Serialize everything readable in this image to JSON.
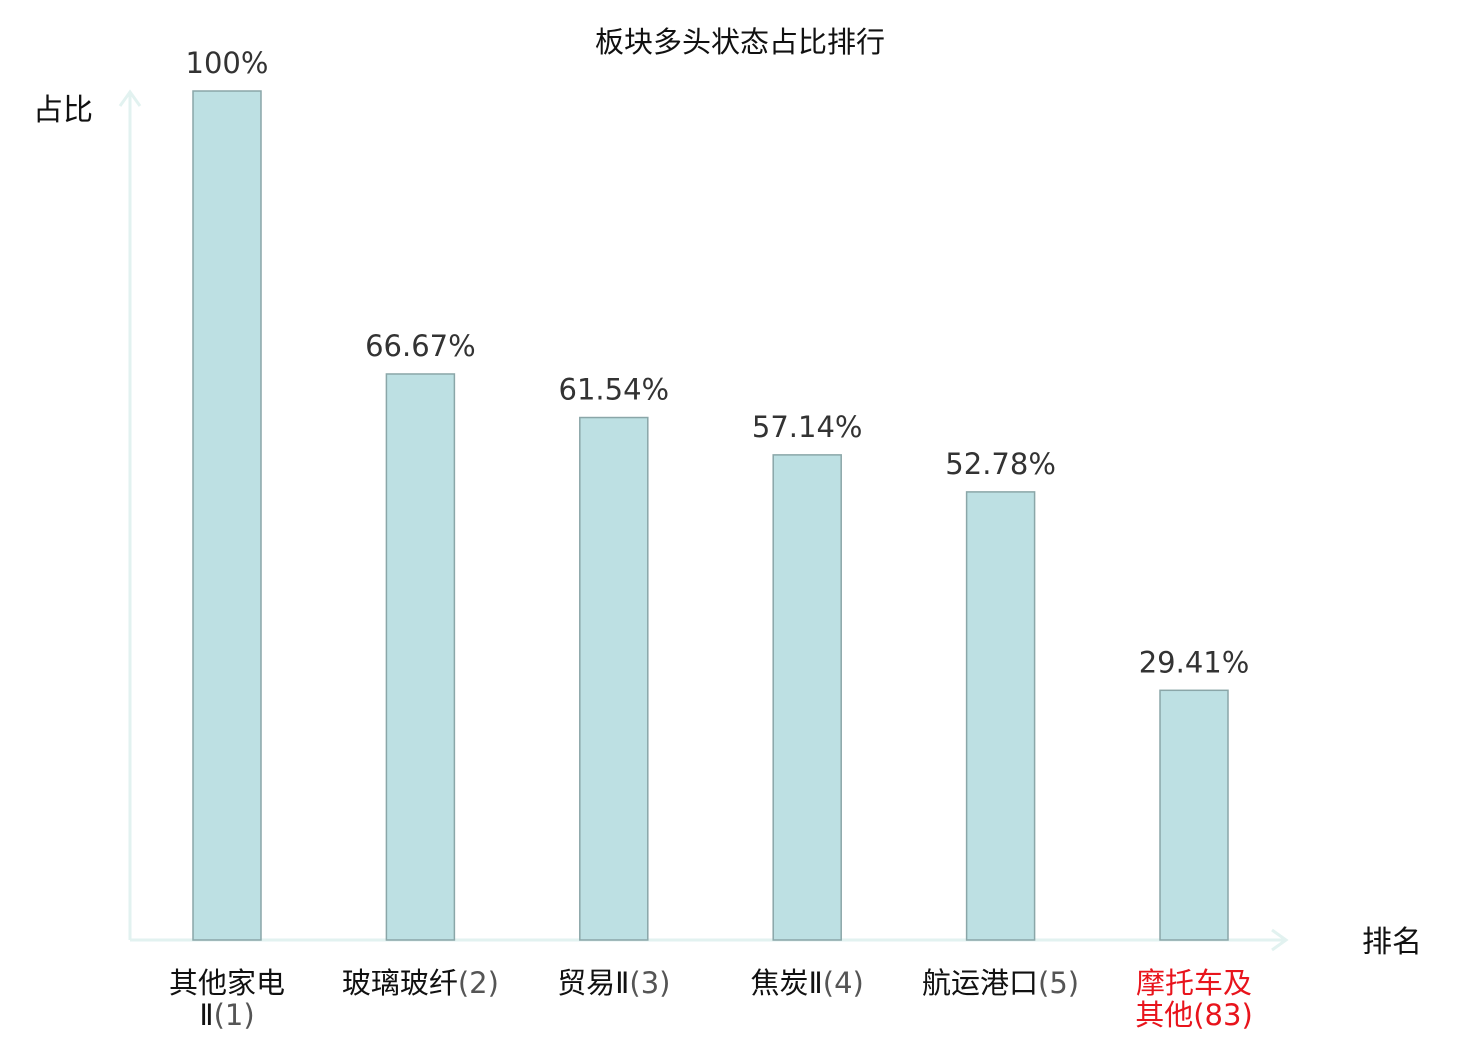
{
  "chart_data": {
    "type": "bar",
    "title": "板块多头状态占比排行",
    "ylabel": "占比",
    "xlabel": "排名",
    "ylim": [
      0,
      100
    ],
    "categories": [
      {
        "name": "其他家电Ⅱ",
        "rank": "(1)",
        "lines": [
          {
            "name": "其他家电",
            "rank": ""
          },
          {
            "name": "Ⅱ",
            "rank": "(1)"
          }
        ],
        "highlight": false
      },
      {
        "name": "玻璃玻纤",
        "rank": "(2)",
        "lines": [
          {
            "name": "玻璃玻纤",
            "rank": "(2)"
          }
        ],
        "highlight": false
      },
      {
        "name": "贸易Ⅱ",
        "rank": "(3)",
        "lines": [
          {
            "name": "贸易Ⅱ",
            "rank": "(3)"
          }
        ],
        "highlight": false
      },
      {
        "name": "焦炭Ⅱ",
        "rank": "(4)",
        "lines": [
          {
            "name": "焦炭Ⅱ",
            "rank": "(4)"
          }
        ],
        "highlight": false
      },
      {
        "name": "航运港口",
        "rank": "(5)",
        "lines": [
          {
            "name": "航运港口",
            "rank": "(5)"
          }
        ],
        "highlight": false
      },
      {
        "name": "摩托车及其他",
        "rank": "(83)",
        "lines": [
          {
            "name": "摩托车及",
            "rank": ""
          },
          {
            "name": "其他",
            "rank": "(83)"
          }
        ],
        "highlight": true
      }
    ],
    "values": [
      100,
      66.67,
      61.54,
      57.14,
      52.78,
      29.41
    ],
    "value_labels": [
      "100%",
      "66.67%",
      "61.54%",
      "57.14%",
      "52.78%",
      "29.41%"
    ],
    "grid": false,
    "colors": {
      "bar_fill": "#bde0e3",
      "bar_stroke": "#8aa6a8",
      "axis": "#e2f2f0",
      "label": "#333333",
      "name": "#111111",
      "rank": "#555555",
      "highlight": "#e8141c"
    }
  }
}
